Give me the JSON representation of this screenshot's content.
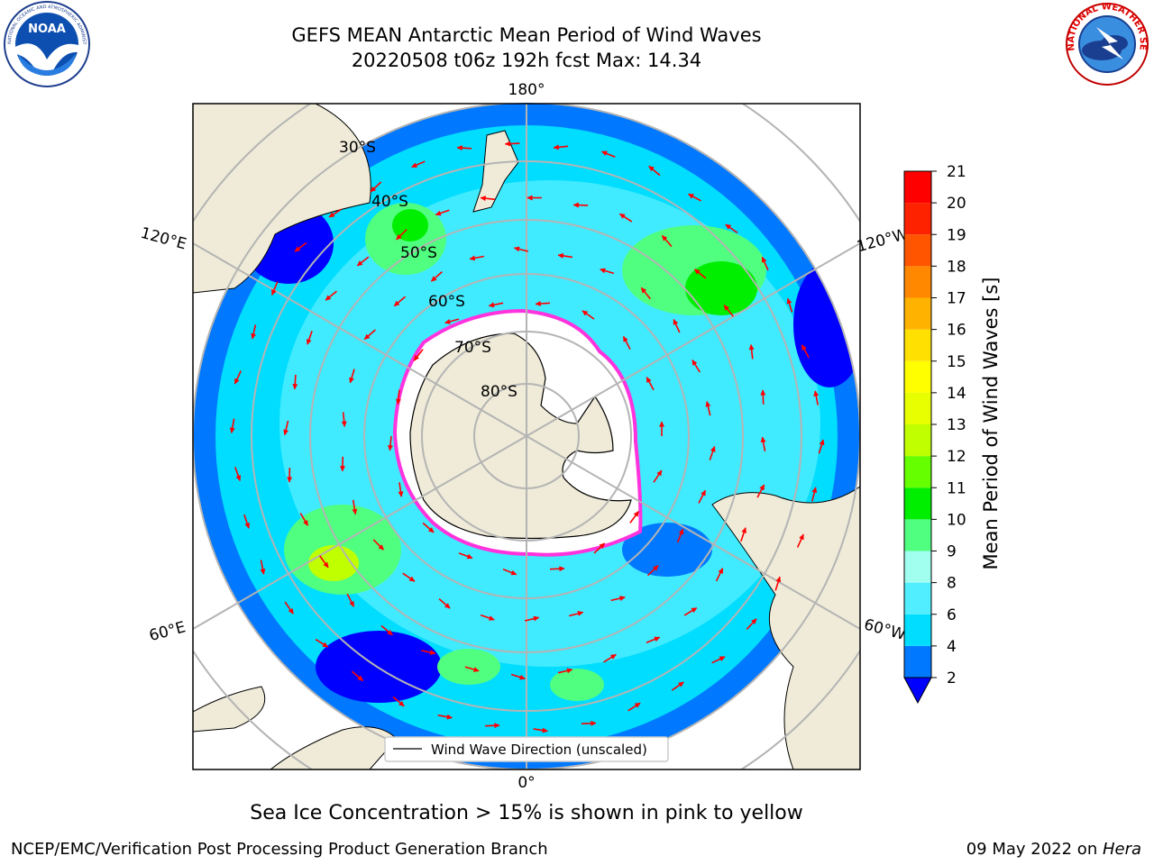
{
  "header": {
    "title_line1": "GEFS MEAN Antarctic Mean Period of Wind Waves",
    "title_line2": "20220508 t06z 192h fcst   Max: 14.34"
  },
  "logos": {
    "left": "NOAA",
    "left_ring": "NATIONAL OCEANIC AND ATMOSPHERIC ADMINISTRATION · U.S. DEPARTMENT OF COMMERCE",
    "right_ring": "NATIONAL WEATHER SERVICE"
  },
  "map": {
    "longitude_labels": {
      "top": "180°",
      "bottom": "0°",
      "upper_left": "120°E",
      "upper_right": "120°W",
      "lower_left": "60°E",
      "lower_right": "60°W"
    },
    "latitude_labels": [
      "30°S",
      "40°S",
      "50°S",
      "60°S",
      "70°S",
      "80°S"
    ],
    "legend_label": "Wind Wave Direction (unscaled)",
    "colors": {
      "land": "#efebd8",
      "ice_edge": "#ff33dd",
      "vector": "#ff0000",
      "grid": "#b4b4b4"
    }
  },
  "colorbar": {
    "label": "Mean Period of Wind Waves [s]",
    "ticks": [
      "2",
      "4",
      "6",
      "8",
      "9",
      "10",
      "11",
      "12",
      "13",
      "14",
      "15",
      "16",
      "17",
      "18",
      "19",
      "20",
      "21"
    ],
    "colors": [
      "#0000ff",
      "#0078ff",
      "#00ddff",
      "#50eeff",
      "#a0ffee",
      "#50ff80",
      "#00ee00",
      "#66ff00",
      "#c0ff00",
      "#e8ff00",
      "#ffff00",
      "#ffe000",
      "#ffb300",
      "#ff8800",
      "#ff5500",
      "#ff2200",
      "#ff0000"
    ]
  },
  "subtitle": "Sea Ice Concentration > 15% is shown in pink to yellow",
  "footer": {
    "left": "NCEP/EMC/Verification Post Processing Product Generation Branch",
    "date": "09 May 2022 on ",
    "machine": "Hera"
  }
}
